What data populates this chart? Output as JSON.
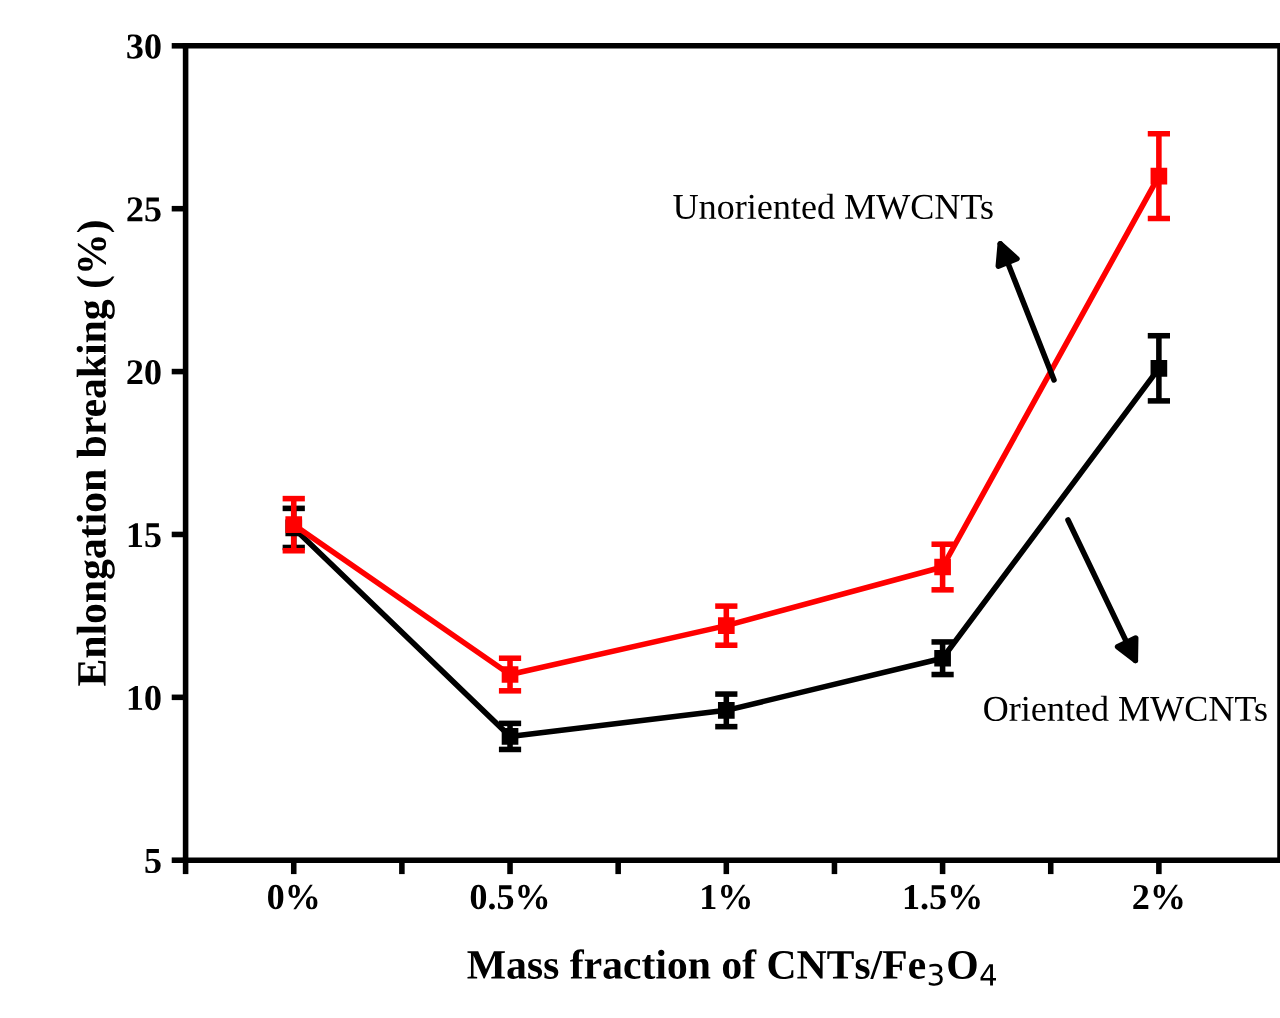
{
  "chart_data": {
    "type": "line",
    "xlabel": "Mass fraction of CNTs/Fe$_{3}$O$_{4}$",
    "ylabel": "Enlongation breaking (%)",
    "x": [
      0,
      0.5,
      1,
      1.5,
      2
    ],
    "series": [
      {
        "color": "#000000",
        "values": [
          15.2,
          8.8,
          9.6,
          11.2,
          20.1
        ],
        "errors": [
          0.6,
          0.4,
          0.5,
          0.5,
          1.0
        ]
      },
      {
        "color": "#ff0000",
        "values": [
          15.3,
          10.7,
          12.2,
          14.0,
          26.0
        ],
        "errors": [
          0.8,
          0.5,
          0.6,
          0.7,
          1.3
        ]
      }
    ],
    "annotations": [
      "Unoriented MWCNTs",
      "Oriented MWCNTs"
    ],
    "xlim": [
      -0.25,
      2.28
    ],
    "ylim": [
      5,
      30
    ],
    "xticks": [
      {
        "value": -0.25,
        "label": null
      },
      {
        "value": 0,
        "label": "0%"
      },
      {
        "value": 0.25,
        "label": null
      },
      {
        "value": 0.5,
        "label": "0.5%"
      },
      {
        "value": 0.75,
        "label": null
      },
      {
        "value": 1,
        "label": "1%"
      },
      {
        "value": 1.25,
        "label": null
      },
      {
        "value": 1.5,
        "label": "1.5%"
      },
      {
        "value": 1.75,
        "label": null
      },
      {
        "value": 2,
        "label": "2%"
      }
    ],
    "yticks": [
      5,
      10,
      15,
      20,
      25,
      30
    ],
    "marker": "square",
    "line_style": "solid",
    "grid": false,
    "legend": false
  }
}
